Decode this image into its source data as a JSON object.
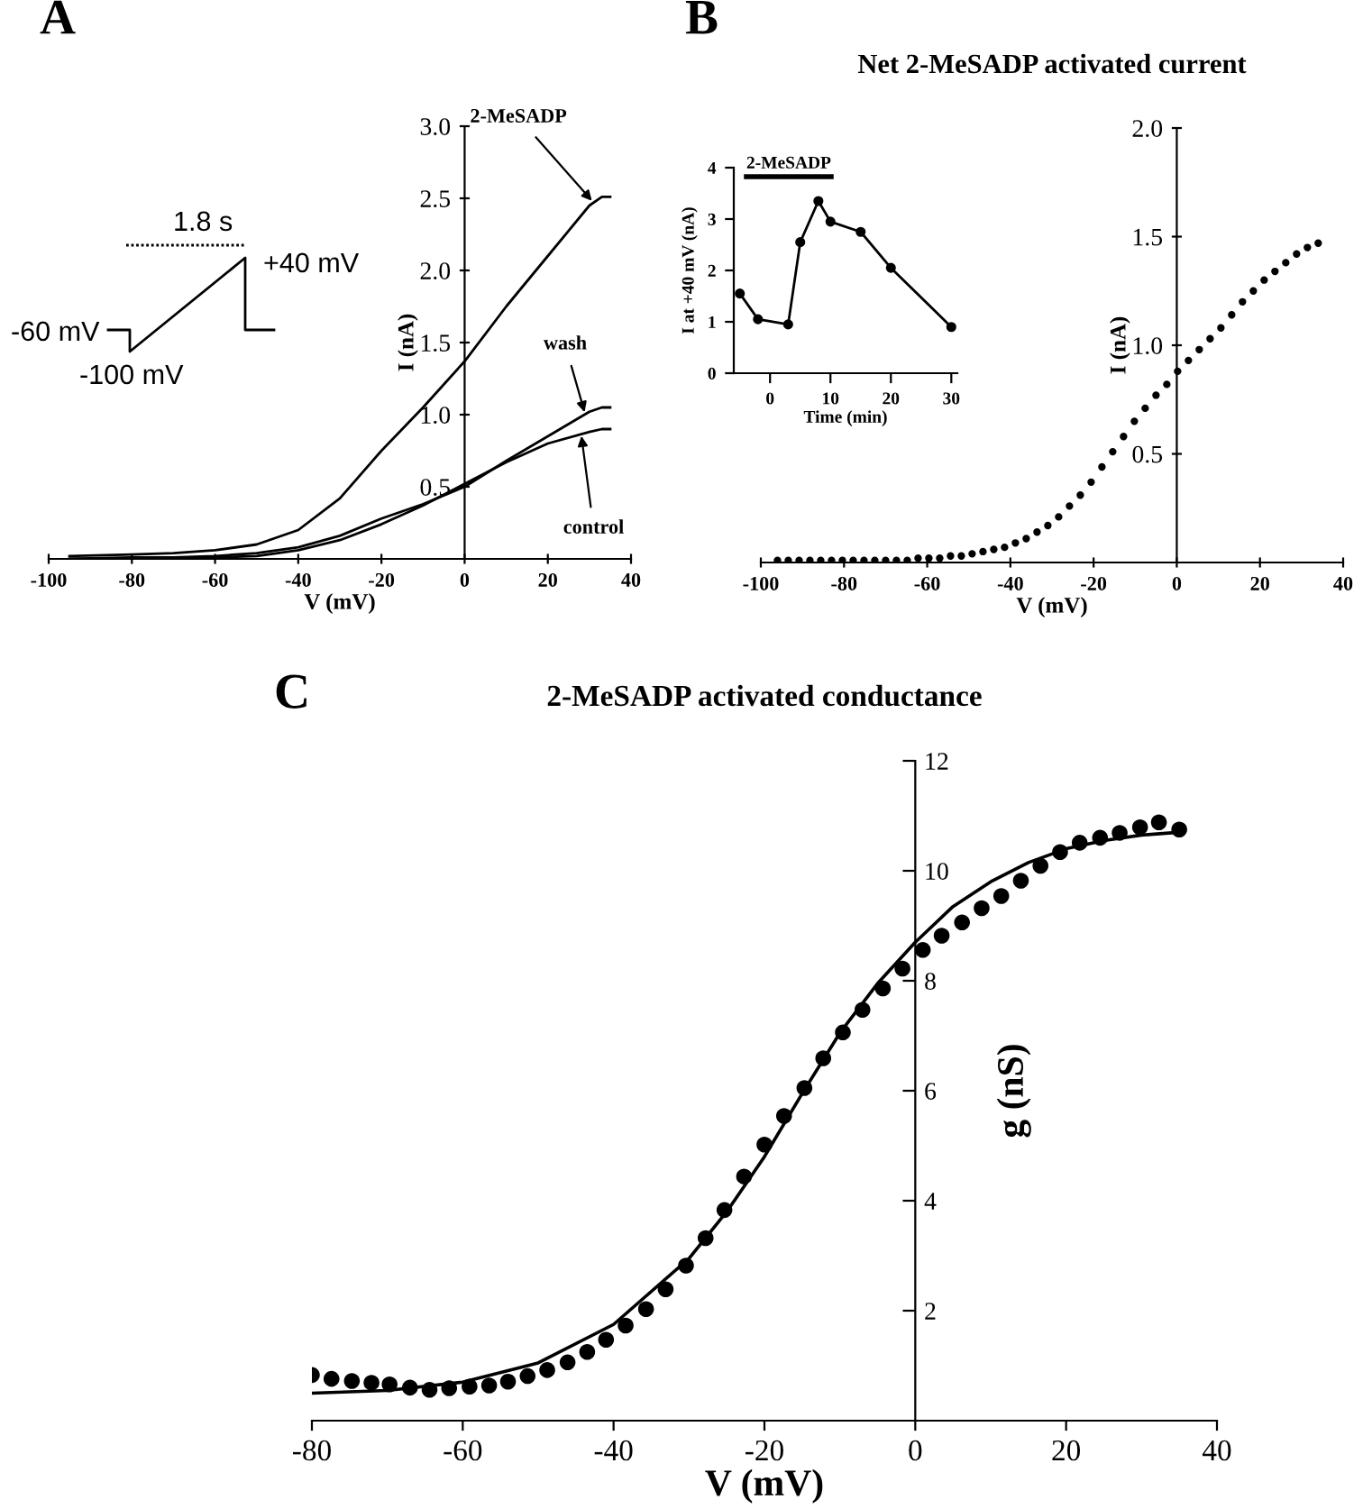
{
  "chart_data": [
    {
      "type": "line",
      "xlabel": "V (mV)",
      "ylabel": "I (nA)",
      "xlim": [
        -100,
        40
      ],
      "ylim": [
        0,
        3
      ],
      "xticks": [
        -100,
        -80,
        -60,
        -40,
        -20,
        0,
        20,
        40
      ],
      "yticks": [
        0.5,
        {
          "value": 1.0,
          "label": "1.0"
        },
        1.5,
        {
          "value": 2.0,
          "label": "2.0"
        },
        2.5,
        {
          "value": 3.0,
          "label": "3.0"
        }
      ],
      "grid": false,
      "series": [
        {
          "color": "#000000",
          "x": [
            -95,
            -80,
            -70,
            -60,
            -50,
            -40,
            -30,
            -20,
            -10,
            0,
            10,
            20,
            30,
            33,
            35
          ],
          "values": [
            0.02,
            0.03,
            0.04,
            0.06,
            0.1,
            0.2,
            0.42,
            0.75,
            1.05,
            1.37,
            1.75,
            2.1,
            2.45,
            2.51,
            2.51
          ]
        },
        {
          "color": "#000000",
          "x": [
            -95,
            -80,
            -70,
            -60,
            -50,
            -40,
            -30,
            -20,
            -10,
            0,
            10,
            20,
            30,
            33,
            35
          ],
          "values": [
            0.0,
            0.01,
            0.01,
            0.02,
            0.04,
            0.08,
            0.16,
            0.28,
            0.38,
            0.5,
            0.68,
            0.85,
            1.02,
            1.05,
            1.05
          ]
        },
        {
          "color": "#000000",
          "x": [
            -95,
            -80,
            -70,
            -60,
            -50,
            -40,
            -30,
            -20,
            -10,
            0,
            10,
            20,
            30,
            33,
            35
          ],
          "values": [
            0.0,
            0.0,
            0.0,
            0.01,
            0.02,
            0.06,
            0.13,
            0.24,
            0.37,
            0.52,
            0.67,
            0.8,
            0.88,
            0.9,
            0.9
          ]
        }
      ],
      "annotations": [
        "A",
        "1.8 s",
        "+40 mV",
        "-60 mV",
        "-100 mV",
        {
          "text": "2-MeSADP",
          "x": 31,
          "y": 2.47
        },
        {
          "text": "wash",
          "x": 29,
          "y": 1.0
        },
        {
          "text": "control",
          "x": 28,
          "y": 0.87
        }
      ]
    },
    {
      "type": "scatter",
      "title": "Net 2-MeSADP activated current",
      "xlabel": "V (mV)",
      "ylabel": "I (nA)",
      "xlim": [
        -100,
        40
      ],
      "ylim": [
        0,
        2
      ],
      "xticks": [
        -100,
        -80,
        -60,
        -40,
        -20,
        0,
        20,
        40
      ],
      "yticks": [
        0.5,
        {
          "value": 1.0,
          "label": "1.0"
        },
        1.5,
        {
          "value": 2.0,
          "label": "2.0"
        }
      ],
      "grid": false,
      "marker": "circle",
      "x": [
        -96,
        -93.4,
        -90.8,
        -88.2,
        -85.6,
        -83,
        -80.4,
        -77.8,
        -75.2,
        -72.6,
        -70,
        -67.4,
        -64.8,
        -62.2,
        -59.6,
        -57,
        -54.4,
        -51.8,
        -49.2,
        -46.6,
        -44,
        -41.4,
        -38.8,
        -36.2,
        -33.6,
        -31,
        -28.4,
        -25.8,
        -23.2,
        -20.6,
        -18,
        -15.4,
        -12.8,
        -10.2,
        -7.6,
        -5,
        -2.4,
        0.2,
        2.8,
        5.4,
        8,
        10.6,
        13.2,
        15.8,
        18.4,
        21,
        23.6,
        26.2,
        28.8,
        31.4,
        34
      ],
      "series": [
        {
          "color": "#000000",
          "values": [
            0.01,
            0.01,
            0.01,
            0.01,
            0.01,
            0.01,
            0.01,
            0.01,
            0.01,
            0.01,
            0.01,
            0.01,
            0.01,
            0.02,
            0.02,
            0.02,
            0.03,
            0.03,
            0.04,
            0.05,
            0.06,
            0.07,
            0.09,
            0.11,
            0.14,
            0.17,
            0.21,
            0.26,
            0.31,
            0.37,
            0.44,
            0.51,
            0.58,
            0.65,
            0.71,
            0.77,
            0.82,
            0.88,
            0.93,
            0.98,
            1.03,
            1.08,
            1.14,
            1.2,
            1.25,
            1.3,
            1.34,
            1.38,
            1.42,
            1.45,
            1.47
          ]
        }
      ],
      "annotations": [
        "B"
      ]
    },
    {
      "type": "line",
      "xlabel": "Time (min)",
      "ylabel": "I at +40 mV (nA)",
      "xlim": [
        -6,
        31
      ],
      "ylim": [
        0,
        4
      ],
      "xticks": [
        0,
        10,
        20,
        30
      ],
      "yticks": [
        0,
        1,
        2,
        3,
        4
      ],
      "grid": false,
      "marker": "circle",
      "x": [
        -5,
        -2,
        3,
        5,
        8,
        10,
        15,
        20,
        30
      ],
      "series": [
        {
          "color": "#000000",
          "values": [
            1.55,
            1.05,
            0.95,
            2.55,
            3.35,
            2.95,
            2.75,
            2.05,
            0.9
          ]
        }
      ],
      "annotations": [
        "2-MeSADP"
      ]
    },
    {
      "type": "scatter",
      "title": "2-MeSADP activated conductance",
      "xlabel": "V (mV)",
      "ylabel": "g (nS)",
      "xlim": [
        -80,
        40
      ],
      "ylim": [
        0,
        12
      ],
      "xticks": [
        -80,
        -60,
        -40,
        -20,
        0,
        20,
        40
      ],
      "yticks": [
        2,
        4,
        6,
        8,
        10,
        12
      ],
      "grid": false,
      "series": [
        {
          "color": "#000000",
          "marker": "circle",
          "x": [
            -80,
            -77.4,
            -74.7,
            -72.1,
            -69.7,
            -67,
            -64.4,
            -61.8,
            -59.1,
            -56.5,
            -54,
            -51.4,
            -48.8,
            -46.1,
            -43.5,
            -41,
            -38.4,
            -35.7,
            -33.1,
            -30.4,
            -27.8,
            -25.3,
            -22.7,
            -20,
            -17.4,
            -14.7,
            -12.2,
            -9.6,
            -7,
            -4.3,
            -1.7,
            1,
            3.5,
            6.2,
            8.8,
            11.4,
            14,
            16.6,
            19.2,
            21.8,
            24.5,
            27.1,
            29.8,
            32.3,
            35
          ],
          "values": [
            0.83,
            0.76,
            0.72,
            0.69,
            0.66,
            0.6,
            0.56,
            0.59,
            0.62,
            0.64,
            0.71,
            0.81,
            0.92,
            1.06,
            1.25,
            1.47,
            1.73,
            2.03,
            2.39,
            2.82,
            3.32,
            3.83,
            4.44,
            5.02,
            5.54,
            6.05,
            6.59,
            7.06,
            7.47,
            7.86,
            8.22,
            8.56,
            8.82,
            9.06,
            9.32,
            9.54,
            9.82,
            10.09,
            10.34,
            10.51,
            10.6,
            10.69,
            10.79,
            10.88,
            10.75
          ]
        },
        {
          "type": "line",
          "color": "#000000",
          "x": [
            -80,
            -70,
            -60,
            -50,
            -40,
            -30,
            -25,
            -20,
            -15,
            -10,
            -5,
            0,
            5,
            10,
            15,
            20,
            25,
            30,
            35
          ],
          "values": [
            0.5,
            0.55,
            0.7,
            1.05,
            1.75,
            2.95,
            3.8,
            4.8,
            5.95,
            7.05,
            7.95,
            8.7,
            9.35,
            9.8,
            10.15,
            10.4,
            10.55,
            10.65,
            10.7
          ]
        }
      ],
      "annotations": [
        "C"
      ]
    }
  ]
}
